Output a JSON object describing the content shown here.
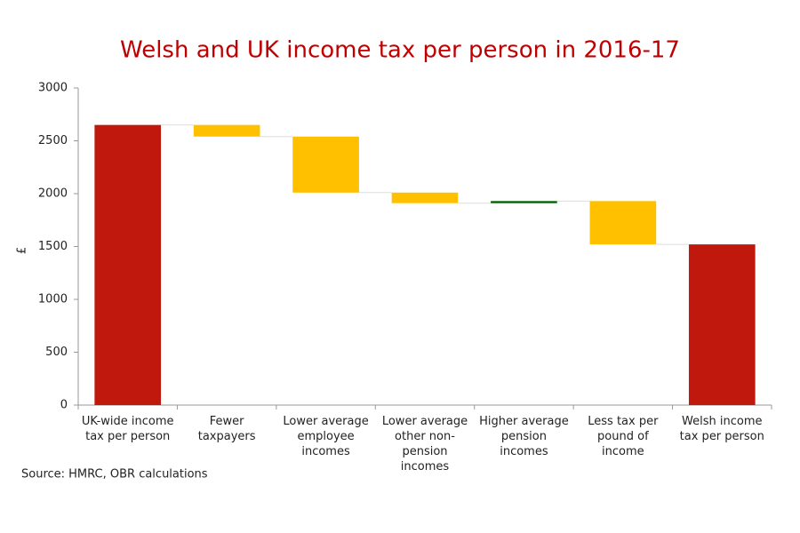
{
  "chart_data": {
    "type": "waterfall",
    "title": "Welsh and UK income tax per person in 2016-17",
    "y_label": "£",
    "categories": [
      "UK-wide income tax per person",
      "Fewer taxpayers",
      "Lower average employee incomes",
      "Lower average other non-pension incomes",
      "Higher average pension incomes",
      "Less tax per pound of income",
      "Welsh income tax per person"
    ],
    "values": [
      2650,
      -110,
      -530,
      -100,
      20,
      -410,
      1520
    ],
    "colors": [
      "#c0180c",
      "#ffc000",
      "#ffc000",
      "#ffc000",
      "#006100",
      "#ffc000",
      "#c0180c"
    ],
    "ylim": [
      0,
      3000
    ],
    "yticks": [
      0,
      500,
      1000,
      1500,
      2000,
      2500,
      3000
    ],
    "source": "Source: HMRC, OBR calculations"
  }
}
